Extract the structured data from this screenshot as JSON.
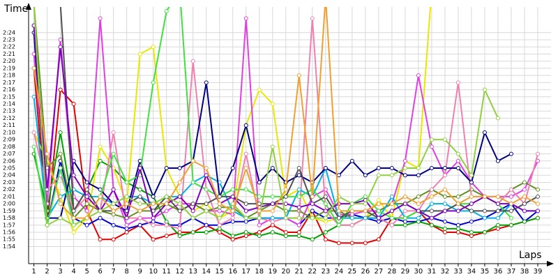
{
  "chart_data": {
    "type": "line",
    "y_label": "Time",
    "x_label": "Laps",
    "x": [
      1,
      2,
      3,
      4,
      5,
      6,
      7,
      8,
      9,
      10,
      11,
      12,
      13,
      14,
      15,
      16,
      17,
      18,
      19,
      20,
      21,
      22,
      23,
      24,
      25,
      26,
      27,
      28,
      29,
      30,
      31,
      32,
      33,
      34,
      35,
      36,
      37,
      38,
      39
    ],
    "xlim": [
      0.6,
      40
    ],
    "xticks": [
      1,
      2,
      3,
      4,
      5,
      6,
      7,
      8,
      9,
      10,
      11,
      12,
      13,
      14,
      15,
      16,
      17,
      18,
      19,
      20,
      21,
      22,
      23,
      24,
      25,
      26,
      27,
      28,
      29,
      30,
      31,
      32,
      33,
      34,
      35,
      36,
      37,
      38,
      39
    ],
    "ylim": [
      111.6,
      147.6
    ],
    "yticks": [
      {
        "value": 114,
        "label": "1:54"
      },
      {
        "value": 115,
        "label": "1:55"
      },
      {
        "value": 116,
        "label": "1:56"
      },
      {
        "value": 117,
        "label": "1:57"
      },
      {
        "value": 118,
        "label": "1:58"
      },
      {
        "value": 119,
        "label": "1:59"
      },
      {
        "value": 120,
        "label": "2:00"
      },
      {
        "value": 121,
        "label": "2:01"
      },
      {
        "value": 122,
        "label": "2:02"
      },
      {
        "value": 123,
        "label": "2:03"
      },
      {
        "value": 124,
        "label": "2:04"
      },
      {
        "value": 125,
        "label": "2:05"
      },
      {
        "value": 126,
        "label": "2:06"
      },
      {
        "value": 127,
        "label": "2:07"
      },
      {
        "value": 128,
        "label": "2:08"
      },
      {
        "value": 129,
        "label": "2:09"
      },
      {
        "value": 130,
        "label": "2:10"
      },
      {
        "value": 131,
        "label": "2:11"
      },
      {
        "value": 132,
        "label": "2:12"
      },
      {
        "value": 133,
        "label": "2:13"
      },
      {
        "value": 134,
        "label": "2:14"
      },
      {
        "value": 135,
        "label": "2:15"
      },
      {
        "value": 136,
        "label": "2:16"
      },
      {
        "value": 137,
        "label": "2:17"
      },
      {
        "value": 138,
        "label": "2:18"
      },
      {
        "value": 139,
        "label": "2:19"
      },
      {
        "value": 140,
        "label": "2:20"
      },
      {
        "value": 141,
        "label": "2:21"
      },
      {
        "value": 142,
        "label": "2:22"
      },
      {
        "value": 143,
        "label": "2:23"
      },
      {
        "value": 144,
        "label": "2:24"
      }
    ],
    "grid": true,
    "series": [
      {
        "color": "#e00000",
        "values": [
          139,
          117,
          136,
          134,
          119,
          115,
          115,
          116,
          117,
          115,
          115.5,
          116,
          116,
          117,
          116,
          115,
          115.5,
          116,
          117,
          116,
          116,
          119,
          115,
          114.5,
          114.5,
          114.5,
          115,
          118,
          118,
          119,
          117,
          116,
          116,
          115.5,
          116,
          116.5,
          117,
          117.5,
          118
        ]
      },
      {
        "color": "#0000d0",
        "values": [
          144,
          117,
          126,
          118,
          117,
          118,
          117,
          116.5,
          117,
          117.5,
          117,
          117,
          118,
          117,
          117,
          117.5,
          117.5,
          118,
          118,
          118,
          117,
          119,
          118,
          118,
          118.5,
          118,
          117.5,
          118,
          117.5,
          117.5,
          118,
          117.5,
          117,
          117.5,
          118,
          119,
          120,
          117.5,
          119
        ]
      },
      {
        "color": "#00a000",
        "values": [
          127,
          119,
          130,
          119,
          122,
          126,
          125,
          123,
          122,
          121,
          117.5,
          115.5,
          116,
          116,
          116.5,
          115.5,
          116,
          115.5,
          116,
          115.5,
          115.5,
          115,
          116,
          117,
          117,
          118,
          118,
          117,
          117,
          117.5,
          117,
          116.5,
          116.5,
          116,
          116,
          117,
          117,
          117.5,
          118
        ]
      },
      {
        "color": "#e8e800",
        "values": [
          130,
          126,
          121,
          116,
          118,
          128,
          125,
          120,
          141,
          142,
          125,
          121,
          119,
          120,
          118,
          119,
          131,
          136,
          134,
          121,
          122,
          118,
          117.5,
          118,
          118,
          118,
          120.5,
          118,
          126,
          125,
          150,
          null,
          null,
          null,
          null,
          null,
          null,
          null,
          null
        ]
      },
      {
        "color": "#e040e0",
        "values": [
          141,
          120,
          143,
          121,
          119,
          146,
          122,
          117,
          118,
          118,
          119,
          120,
          120,
          119,
          119,
          118.5,
          146,
          117,
          118,
          118,
          117,
          121,
          122,
          118.5,
          118.5,
          119,
          119,
          120,
          126,
          138,
          128,
          124,
          126,
          123,
          121,
          121,
          121,
          122,
          126
        ]
      },
      {
        "color": "#609020",
        "values": [
          148,
          125,
          127,
          118,
          120,
          119,
          118.5,
          118,
          119,
          119,
          120,
          119,
          120,
          119,
          119.5,
          119.5,
          118,
          119,
          120,
          119,
          119,
          118,
          119,
          119,
          118,
          118,
          119,
          120,
          120,
          121,
          122,
          121,
          121,
          122,
          121,
          120,
          122,
          123,
          122
        ]
      },
      {
        "color": "#f080b0",
        "values": [
          130,
          122,
          124,
          119,
          121,
          119,
          130,
          118,
          118,
          117,
          117,
          116.5,
          140,
          122,
          117,
          118,
          127,
          118,
          117.5,
          118,
          118,
          146,
          119,
          117,
          117,
          118,
          118,
          117,
          119,
          119,
          122,
          124,
          137,
          121,
          121,
          120,
          122,
          120,
          127
        ]
      },
      {
        "color": "#00b0e0",
        "values": [
          135,
          118,
          121,
          122,
          121,
          121,
          120,
          121,
          121,
          120,
          121,
          121,
          123,
          124,
          123,
          119,
          118,
          118,
          118,
          118,
          122,
          121,
          125,
          118,
          118,
          118,
          118,
          121,
          118,
          118,
          120,
          120,
          119,
          119,
          118,
          118,
          120,
          119,
          119
        ]
      },
      {
        "color": "#000080",
        "values": [
          145,
          118,
          118,
          126,
          123,
          122,
          120,
          119,
          126,
          121,
          125,
          125,
          126,
          137,
          121,
          125,
          131,
          123,
          125,
          123,
          124,
          123,
          125,
          124,
          126,
          124,
          125,
          125,
          124,
          124,
          125,
          125,
          125,
          123,
          130,
          126,
          127,
          null,
          null
        ]
      },
      {
        "color": "#40e040",
        "values": [
          128,
          117,
          125,
          117,
          118,
          121,
          127,
          123,
          124,
          137,
          147,
          150,
          123,
          122,
          121,
          122,
          122,
          121,
          121,
          121,
          121,
          122,
          120,
          117,
          120,
          121,
          119,
          118,
          118,
          119,
          118,
          119,
          120,
          120,
          121,
          120,
          118,
          null,
          null
        ]
      },
      {
        "color": "#505050",
        "values": [
          148,
          148,
          148,
          119,
          122,
          119,
          119,
          120,
          121,
          119,
          121,
          119,
          120,
          120,
          121,
          121,
          120,
          120,
          120,
          121,
          125,
          120,
          121,
          118,
          119,
          119,
          118,
          119,
          120,
          119,
          119,
          119,
          120,
          119,
          119,
          119,
          119,
          120,
          121
        ]
      },
      {
        "color": "#8000c0",
        "values": [
          145,
          122,
          142,
          124,
          121,
          119,
          122,
          118,
          125,
          118,
          120,
          121,
          119,
          124,
          120,
          121,
          119,
          119.5,
          120,
          120,
          119.5,
          120,
          119,
          120,
          120,
          120.5,
          118,
          119,
          120,
          119,
          118,
          119,
          119,
          120,
          121,
          120,
          120,
          119,
          119
        ]
      },
      {
        "color": "#90d040",
        "values": [
          148,
          117,
          118,
          117,
          118,
          119,
          120,
          121,
          120,
          120,
          121,
          120,
          118,
          119,
          118,
          120,
          118,
          118,
          128,
          118,
          118,
          118,
          118,
          121,
          120,
          120,
          124,
          124,
          125,
          125,
          129,
          129,
          127,
          124,
          136,
          132,
          null,
          null,
          null
        ]
      },
      {
        "color": "#f0a030",
        "values": [
          139,
          127,
          120,
          118,
          118,
          121,
          119,
          120,
          119,
          120,
          120,
          123,
          126,
          125,
          120,
          119,
          125,
          119,
          119,
          122,
          138,
          121,
          149,
          119,
          119,
          119,
          120,
          120,
          121,
          120,
          121,
          122,
          120,
          121,
          121,
          121,
          120,
          121,
          120
        ]
      }
    ]
  }
}
